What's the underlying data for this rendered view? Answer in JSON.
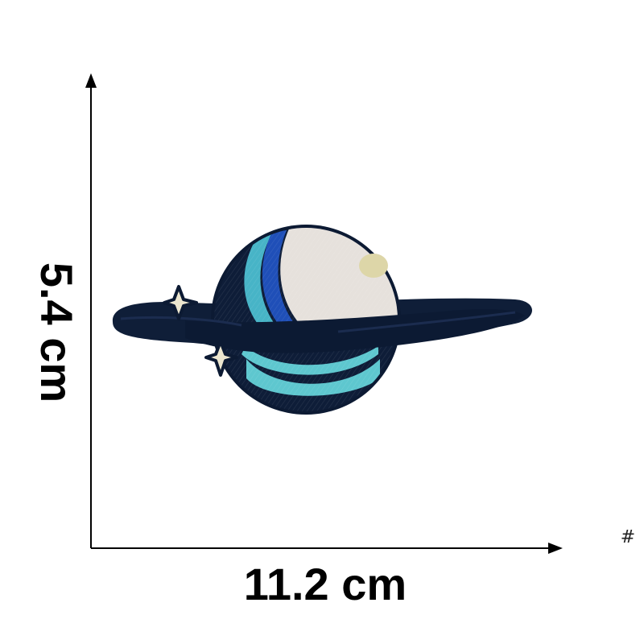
{
  "dimensions": {
    "width_label": "11.2 cm",
    "height_label": "5.4 cm"
  },
  "corner_mark": "#",
  "patch": {
    "subject": "planet-patch",
    "colors": {
      "outline": "#0c1a33",
      "ring": "#0f1e38",
      "planet_light": "#e6e1dc",
      "crater": "#ddd6a8",
      "band_royal": "#1f4fb8",
      "band_cyan": "#47b4c7",
      "band_aqua": "#5ec7cf",
      "star": "#ece6cf"
    }
  }
}
